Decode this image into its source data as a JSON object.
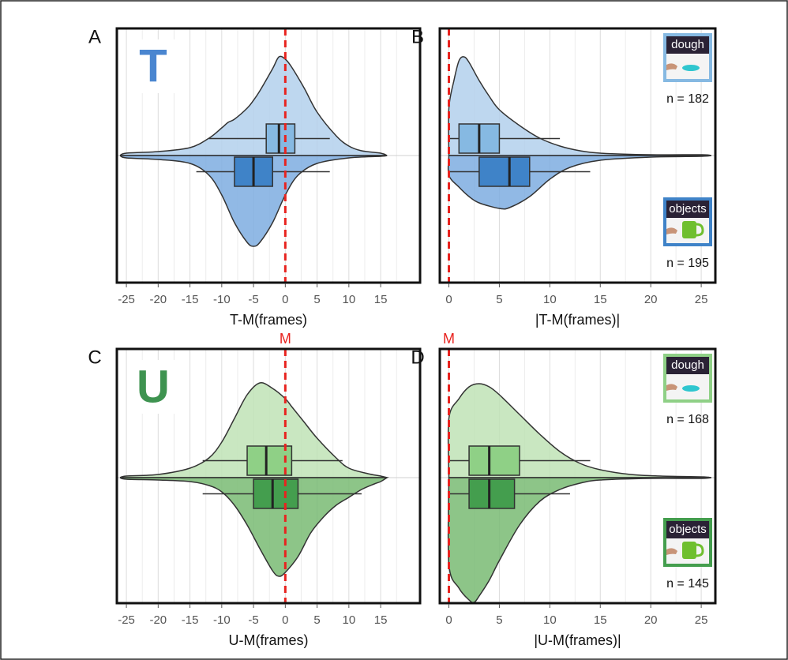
{
  "chart_data": [
    {
      "type": "violin",
      "panel_label": "A",
      "big_letter": "T",
      "big_letter_color": "#4a86d0",
      "xlabel": "T-M(frames)",
      "xlim": [
        -26.5,
        21.2
      ],
      "xticks": [
        -25,
        -20,
        -15,
        -10,
        -5,
        0,
        5,
        10,
        15
      ],
      "xminorticks": [
        -22.5,
        -17.5,
        -12.5,
        -7.5,
        -2.5,
        2.5,
        7.5,
        12.5,
        17.5
      ],
      "ref_x": 0,
      "grid": true,
      "series": [
        {
          "color": "#b3d0ec",
          "box_color": "#86b9e2",
          "x": [
            -26,
            -25,
            -20,
            -15,
            -12,
            -10,
            -9,
            -8,
            -6,
            -5,
            -4,
            -2,
            -1,
            0,
            1,
            3,
            5,
            8,
            10,
            12,
            15,
            16
          ],
          "density": [
            0,
            3,
            5,
            10,
            22,
            35,
            42,
            46,
            60,
            70,
            82,
            110,
            125,
            122,
            112,
            85,
            55,
            25,
            12,
            6,
            3,
            0
          ],
          "box": {
            "whisker_low": -12,
            "q1": -3,
            "median": -1,
            "q3": 1.5,
            "whisker_high": 7
          }
        },
        {
          "color": "#7eade0",
          "box_color": "#3f83c8",
          "x": [
            -26,
            -25,
            -20,
            -15,
            -12,
            -10,
            -8,
            -6,
            -5,
            -4,
            -2,
            0,
            2,
            5,
            10,
            15,
            16
          ],
          "density": [
            0,
            3,
            5,
            10,
            25,
            50,
            85,
            110,
            115,
            110,
            85,
            50,
            25,
            10,
            3,
            1,
            0
          ],
          "box": {
            "whisker_low": -14,
            "q1": -8,
            "median": -5,
            "q3": -2,
            "whisker_high": 7
          }
        }
      ]
    },
    {
      "type": "violin",
      "panel_label": "B",
      "xlabel": "|T-M(frames)|",
      "xlim": [
        -0.9,
        26.4
      ],
      "xticks": [
        0,
        5,
        10,
        15,
        20,
        25
      ],
      "xminorticks": [
        2.5,
        7.5,
        12.5,
        17.5,
        22.5
      ],
      "ref_x": 0,
      "grid": true,
      "series": [
        {
          "name": "dough",
          "sample_label": "n = 182",
          "color": "#b3d0ec",
          "box_color": "#86b9e2",
          "x": [
            0,
            0,
            0.5,
            1,
            1.5,
            2,
            3,
            4,
            5,
            7,
            9,
            11,
            13,
            15,
            20,
            25,
            26
          ],
          "density": [
            0,
            60,
            95,
            120,
            125,
            118,
            95,
            75,
            58,
            38,
            22,
            12,
            6,
            3,
            1,
            1,
            0
          ],
          "box": {
            "whisker_low": 0,
            "q1": 1,
            "median": 3,
            "q3": 5,
            "whisker_high": 11
          }
        },
        {
          "name": "objects",
          "sample_label": "n = 195",
          "color": "#7eade0",
          "box_color": "#3f83c8",
          "x": [
            0,
            0,
            1,
            2,
            3,
            5,
            6,
            8,
            10,
            12,
            15,
            20,
            25,
            26
          ],
          "density": [
            0,
            25,
            40,
            52,
            60,
            67,
            66,
            52,
            30,
            15,
            6,
            2,
            1,
            0
          ],
          "box": {
            "whisker_low": 0,
            "q1": 3,
            "median": 6,
            "q3": 8,
            "whisker_high": 14
          }
        }
      ]
    },
    {
      "type": "violin",
      "panel_label": "C",
      "big_letter": "U",
      "big_letter_color": "#3e9350",
      "xlabel": "U-M(frames)",
      "xlim": [
        -26.5,
        21.2
      ],
      "xticks": [
        -25,
        -20,
        -15,
        -10,
        -5,
        0,
        5,
        10,
        15
      ],
      "xminorticks": [
        -22.5,
        -17.5,
        -12.5,
        -7.5,
        -2.5,
        2.5,
        7.5,
        12.5,
        17.5
      ],
      "ref_x": 0,
      "ref_label": "M",
      "grid": true,
      "series": [
        {
          "color": "#bfe3b6",
          "box_color": "#8fd086",
          "x": [
            -26,
            -25,
            -20,
            -15,
            -12,
            -10,
            -8,
            -6,
            -4,
            -2,
            0,
            1,
            3,
            5,
            8,
            10,
            13,
            15,
            16
          ],
          "density": [
            0,
            2,
            4,
            12,
            25,
            45,
            75,
            105,
            120,
            113,
            100,
            90,
            70,
            50,
            25,
            12,
            5,
            2,
            0
          ],
          "box": {
            "whisker_low": -13,
            "q1": -6,
            "median": -3,
            "q3": 1,
            "whisker_high": 9
          }
        },
        {
          "color": "#79bb73",
          "box_color": "#449e4e",
          "x": [
            -26,
            -25,
            -20,
            -15,
            -12,
            -10,
            -8,
            -6,
            -4,
            -2,
            -1,
            0,
            2,
            4,
            6,
            8,
            10,
            12,
            14,
            15,
            16
          ],
          "density": [
            0,
            2,
            3,
            5,
            10,
            18,
            35,
            60,
            90,
            118,
            125,
            120,
            100,
            70,
            50,
            35,
            25,
            15,
            8,
            5,
            0
          ],
          "box": {
            "whisker_low": -13,
            "q1": -5,
            "median": -2,
            "q3": 2,
            "whisker_high": 12
          }
        }
      ]
    },
    {
      "type": "violin",
      "panel_label": "D",
      "xlabel": "|U-M(frames)|",
      "xlim": [
        -0.9,
        26.4
      ],
      "xticks": [
        0,
        5,
        10,
        15,
        20,
        25
      ],
      "xminorticks": [
        2.5,
        7.5,
        12.5,
        17.5,
        22.5
      ],
      "ref_x": 0,
      "ref_label": "M",
      "grid": true,
      "series": [
        {
          "name": "dough",
          "sample_label": "n = 168",
          "color": "#bfe3b6",
          "box_color": "#8fd086",
          "x": [
            0,
            0,
            1,
            2,
            3,
            4,
            5,
            7,
            9,
            11,
            13,
            15,
            18,
            21,
            25,
            26
          ],
          "density": [
            0,
            75,
            100,
            115,
            119,
            115,
            105,
            80,
            55,
            33,
            18,
            10,
            4,
            2,
            1,
            0
          ],
          "box": {
            "whisker_low": 0,
            "q1": 2,
            "median": 4,
            "q3": 7,
            "whisker_high": 14
          }
        },
        {
          "name": "objects",
          "sample_label": "n = 145",
          "color": "#79bb73",
          "box_color": "#449e4e",
          "x": [
            0,
            0,
            1,
            2,
            2.5,
            3,
            4,
            5,
            7,
            9,
            11,
            13,
            15,
            20,
            25,
            26
          ],
          "density": [
            0,
            110,
            140,
            155,
            158,
            150,
            130,
            105,
            60,
            30,
            15,
            7,
            3,
            1,
            1,
            0
          ],
          "box": {
            "whisker_low": 0,
            "q1": 2,
            "median": 4,
            "q3": 6.5,
            "whisker_high": 12
          }
        }
      ]
    }
  ]
}
